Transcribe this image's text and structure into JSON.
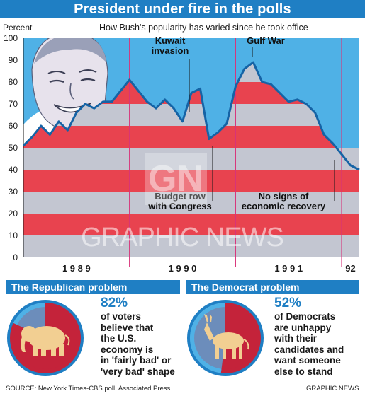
{
  "title": "President under fire in the polls",
  "subtitle": "How Bush's popularity has varied since he took office",
  "chart_data": {
    "type": "line",
    "ylabel": "Percent",
    "ylim": [
      0,
      100
    ],
    "yticks": [
      "0",
      "10",
      "20",
      "30",
      "40",
      "50",
      "60",
      "70",
      "80",
      "90",
      "100"
    ],
    "x_period_labels": [
      "1 9 8 9",
      "1 9 9 0",
      "1 9 9 1",
      "92"
    ],
    "x_period_bounds": [
      "Jan 1989",
      "Jan 1990",
      "Jan 1991",
      "Jan 1992",
      "Mar 1992"
    ],
    "series": [
      {
        "values": [
          {
            "x": "Jan 1989",
            "y": 51
          },
          {
            "x": "Feb 1989",
            "y": 55
          },
          {
            "x": "Mar 1989",
            "y": 60
          },
          {
            "x": "Apr 1989",
            "y": 56
          },
          {
            "x": "May 1989",
            "y": 62
          },
          {
            "x": "Jun 1989",
            "y": 58
          },
          {
            "x": "Jul 1989",
            "y": 66
          },
          {
            "x": "Aug 1989",
            "y": 70
          },
          {
            "x": "Sep 1989",
            "y": 68
          },
          {
            "x": "Oct 1989",
            "y": 71
          },
          {
            "x": "Nov 1989",
            "y": 71
          },
          {
            "x": "Dec 1989",
            "y": 76
          },
          {
            "x": "Jan 1990",
            "y": 81
          },
          {
            "x": "Feb 1990",
            "y": 76
          },
          {
            "x": "Mar 1990",
            "y": 71
          },
          {
            "x": "Apr 1990",
            "y": 68
          },
          {
            "x": "May 1990",
            "y": 72
          },
          {
            "x": "Jun 1990",
            "y": 68
          },
          {
            "x": "Jul 1990",
            "y": 62
          },
          {
            "x": "Aug 1990",
            "y": 75
          },
          {
            "x": "Sep 1990",
            "y": 77
          },
          {
            "x": "Oct 1990",
            "y": 54
          },
          {
            "x": "Nov 1990",
            "y": 57
          },
          {
            "x": "Dec 1990",
            "y": 61
          },
          {
            "x": "Jan 1991",
            "y": 78
          },
          {
            "x": "Feb 1991",
            "y": 86
          },
          {
            "x": "Mar 1991",
            "y": 89
          },
          {
            "x": "Apr 1991",
            "y": 80
          },
          {
            "x": "May 1991",
            "y": 79
          },
          {
            "x": "Jun 1991",
            "y": 75
          },
          {
            "x": "Jul 1991",
            "y": 71
          },
          {
            "x": "Aug 1991",
            "y": 72
          },
          {
            "x": "Sep 1991",
            "y": 70
          },
          {
            "x": "Oct 1991",
            "y": 66
          },
          {
            "x": "Nov 1991",
            "y": 56
          },
          {
            "x": "Dec 1991",
            "y": 52
          },
          {
            "x": "Jan 1992",
            "y": 47
          },
          {
            "x": "Feb 1992",
            "y": 42
          },
          {
            "x": "Mar 1992",
            "y": 40
          }
        ]
      }
    ],
    "annotations": [
      {
        "text": [
          "Kuwait",
          "invasion"
        ],
        "at": "Aug 1990"
      },
      {
        "text": [
          "Gulf War"
        ],
        "at": "Jan 1991"
      },
      {
        "text": [
          "Budget row",
          "with Congress"
        ],
        "at": "Oct 1990"
      },
      {
        "text": [
          "No signs of",
          "economic recovery"
        ],
        "at": "Jan 1992"
      }
    ],
    "grid": true
  },
  "republican": {
    "heading": "The Republican problem",
    "percent": "82%",
    "text": [
      "of voters",
      "believe that",
      "the U.S.",
      "economy is",
      "in 'fairly bad' or",
      "'very bad' shape"
    ],
    "pie_share": 0.82
  },
  "democrat": {
    "heading": "The Democrat problem",
    "percent": "52%",
    "text": [
      "of Democrats",
      "are unhappy",
      "with their",
      "candidates and",
      "want someone",
      "else to stand"
    ],
    "pie_share": 0.52
  },
  "watermark": "GRAPHIC NEWS",
  "logo_text": "GN",
  "source": "SOURCE: New York Times-CBS poll, Associated Press",
  "credit": "GRAPHIC NEWS",
  "colors": {
    "brand_blue": "#1f7fc4",
    "sky": "#4fb1e6",
    "band_red": "#e8434f",
    "band_pink": "#f7c9cc",
    "band_grey": "#c3c6d1",
    "pie_red": "#c4233a",
    "animal": "#f2cf92"
  }
}
